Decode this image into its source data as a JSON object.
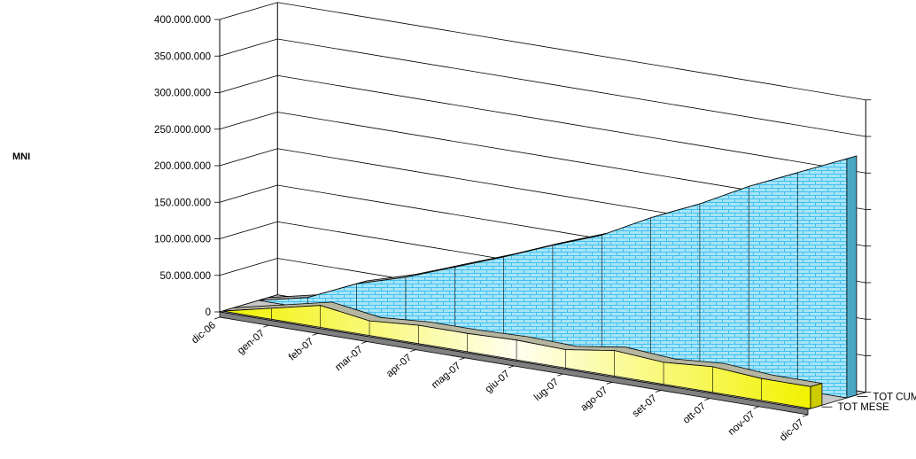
{
  "chart_data": {
    "type": "area",
    "variant": "3d-area",
    "ylabel": "MNI",
    "categories": [
      "dic-06",
      "gen-07",
      "feb-07",
      "mar-07",
      "apr-07",
      "mag-07",
      "giu-07",
      "lug-07",
      "ago-07",
      "set-07",
      "ott-07",
      "nov-07",
      "dic-07"
    ],
    "y_ticks": [
      "0",
      "50.000.000",
      "100.000.000",
      "150.000.000",
      "200.000.000",
      "250.000.000",
      "300.000.000",
      "350.000.000",
      "400.000.000"
    ],
    "ylim": [
      0,
      400000000
    ],
    "grid": true,
    "series": [
      {
        "name": "TOT MESE",
        "values": [
          0,
          15000000,
          30000000,
          20000000,
          25000000,
          25000000,
          27000000,
          25000000,
          35000000,
          30000000,
          35000000,
          30000000,
          30000000
        ],
        "color": "#ffff33"
      },
      {
        "name": "TOT CUM",
        "values": [
          0,
          15000000,
          45000000,
          65000000,
          90000000,
          115000000,
          142000000,
          167000000,
          202000000,
          232000000,
          267000000,
          297000000,
          327000000
        ],
        "color": "#33ccff"
      }
    ]
  }
}
